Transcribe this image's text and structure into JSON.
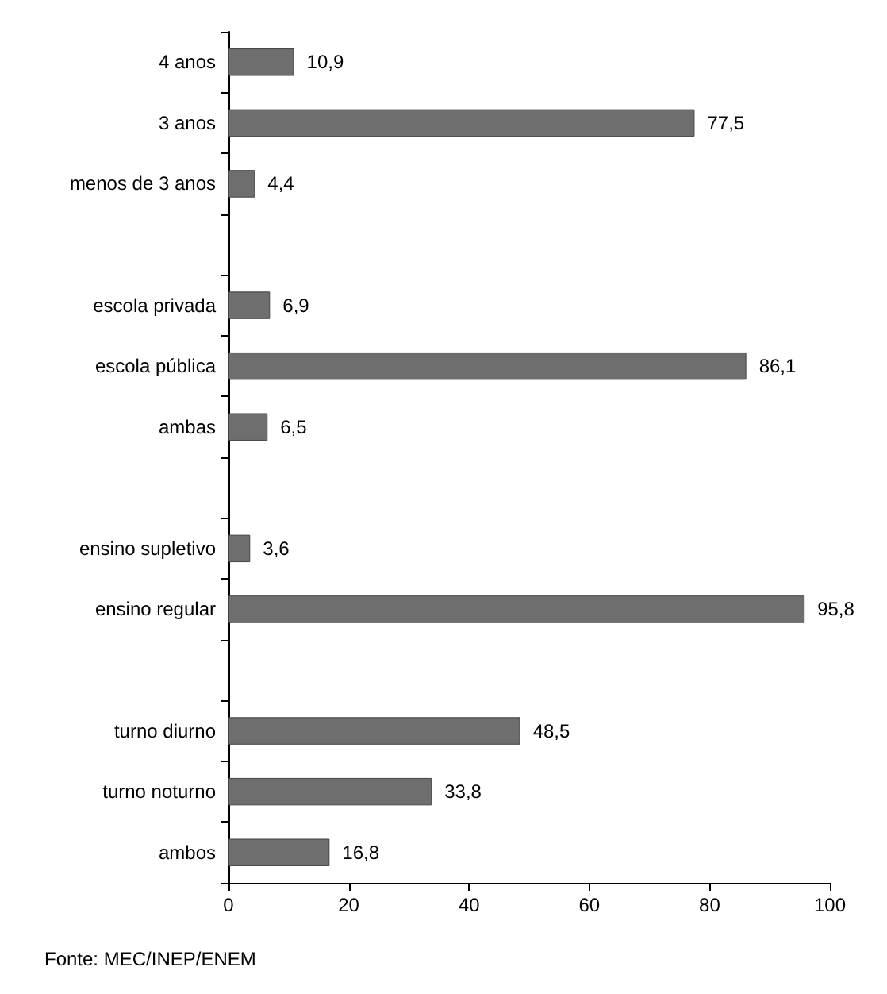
{
  "chart_data": {
    "type": "bar",
    "orientation": "horizontal",
    "categories": [
      "4 anos",
      "3 anos",
      "menos de 3 anos",
      null,
      "escola privada",
      "escola pública",
      "ambas",
      null,
      "ensino supletivo",
      "ensino regular",
      null,
      "turno diurno",
      "turno noturno",
      "ambos"
    ],
    "values": [
      10.9,
      77.5,
      4.4,
      null,
      6.9,
      86.1,
      6.5,
      null,
      3.6,
      95.8,
      null,
      48.5,
      33.8,
      16.8
    ],
    "value_labels": [
      "10,9",
      "77,5",
      "4,4",
      null,
      "6,9",
      "86,1",
      "6,5",
      null,
      "3,6",
      "95,8",
      null,
      "48,5",
      "33,8",
      "16,8"
    ],
    "color": "#6e6e6e",
    "xlim": [
      0,
      100
    ],
    "xticks": [
      0,
      20,
      40,
      60,
      80,
      100
    ],
    "grid": false,
    "annotations": [
      "Fonte: MEC/INEP/ENEM"
    ]
  }
}
